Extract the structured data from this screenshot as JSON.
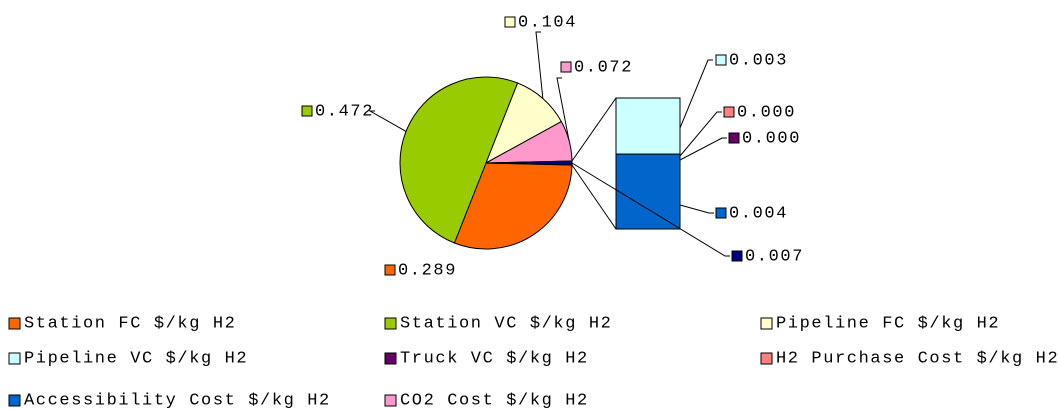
{
  "chart_data": {
    "type": "bar_of_pie",
    "series": [
      {
        "name": "Station FC $/kg H2",
        "color": "#FF6600",
        "values": [
          0.289
        ],
        "value_labels": [
          "0.289"
        ],
        "split": false
      },
      {
        "name": "Station VC $/kg H2",
        "color": "#99CC00",
        "values": [
          0.472
        ],
        "value_labels": [
          "0.472"
        ],
        "split": false
      },
      {
        "name": "Pipeline FC $/kg H2",
        "color": "#FFFFCC",
        "values": [
          0.104
        ],
        "value_labels": [
          "0.104"
        ],
        "split": false
      },
      {
        "name": "Pipeline VC $/kg H2",
        "color": "#CCFFFF",
        "values": [
          0.003
        ],
        "value_labels": [
          "0.003"
        ],
        "split": true
      },
      {
        "name": "Truck VC $/kg H2",
        "color": "#660066",
        "values": [
          0
        ],
        "value_labels": [
          "0.000"
        ],
        "split": true
      },
      {
        "name": "H2 Purchase Cost $/kg H2",
        "color": "#FF8080",
        "values": [
          0
        ],
        "value_labels": [
          "0.000"
        ],
        "split": true
      },
      {
        "name": "Accessibility Cost $/kg H2",
        "color": "#0066CC",
        "values": [
          0.004
        ],
        "value_labels": [
          "0.004"
        ],
        "split": true
      },
      {
        "name": "CO2 Cost $/kg H2",
        "color": "#FF99CC",
        "values": [
          0.072
        ],
        "value_labels": [
          "0.072"
        ],
        "split": false
      }
    ],
    "other": {
      "values": [
        0.007
      ],
      "value_labels": [
        "0.007"
      ],
      "color": "#000080"
    }
  }
}
